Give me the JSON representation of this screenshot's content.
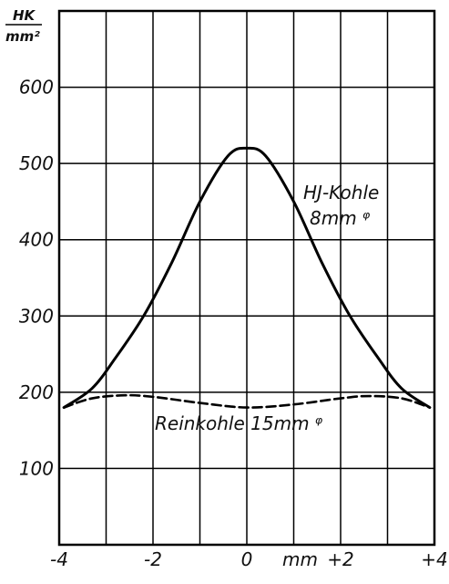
{
  "chart_data": {
    "type": "line",
    "title": "",
    "ylabel": {
      "numerator": "HK",
      "denominator": "mm²"
    },
    "xlabel": "mm",
    "xlim": [
      -4,
      4
    ],
    "ylim": [
      0,
      700
    ],
    "grid": true,
    "x_ticks": [
      {
        "value": -4,
        "label": "-4"
      },
      {
        "value": -2,
        "label": "-2"
      },
      {
        "value": 0,
        "label": "0"
      },
      {
        "value": 2,
        "label": "+2"
      },
      {
        "value": 4,
        "label": "+4"
      }
    ],
    "y_ticks": [
      {
        "value": 100,
        "label": "100"
      },
      {
        "value": 200,
        "label": "200"
      },
      {
        "value": 300,
        "label": "300"
      },
      {
        "value": 400,
        "label": "400"
      },
      {
        "value": 500,
        "label": "500"
      },
      {
        "value": 600,
        "label": "600"
      }
    ],
    "series": [
      {
        "name": [
          "HJ-Kohle",
          "8mm ᵠ"
        ],
        "style": "solid",
        "color": "#000000",
        "x": [
          -3.9,
          -3.3,
          -2.8,
          -2.2,
          -1.6,
          -1.0,
          -0.4,
          0.0,
          0.4,
          1.0,
          1.6,
          2.2,
          2.8,
          3.3,
          3.9
        ],
        "y": [
          180,
          205,
          245,
          300,
          370,
          450,
          510,
          520,
          510,
          450,
          370,
          300,
          245,
          205,
          180
        ]
      },
      {
        "name": [
          "Reinkohle 15mm ᵠ"
        ],
        "style": "dashed",
        "color": "#000000",
        "x": [
          -3.9,
          -3.3,
          -2.6,
          -2.0,
          -1.0,
          0.0,
          1.0,
          2.0,
          2.6,
          3.3,
          3.9
        ],
        "y": [
          180,
          192,
          196,
          194,
          186,
          180,
          184,
          192,
          195,
          192,
          180
        ]
      }
    ]
  }
}
